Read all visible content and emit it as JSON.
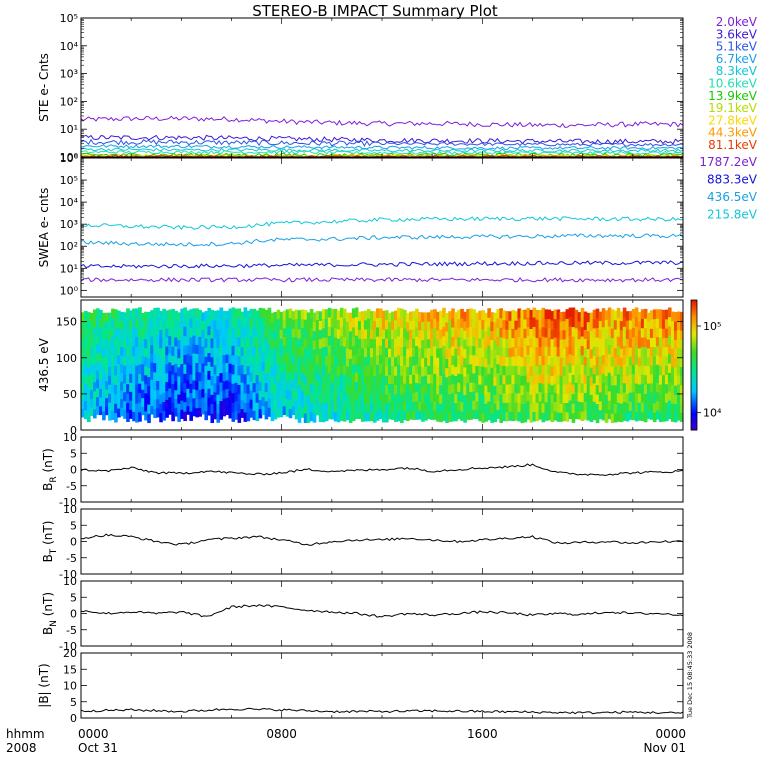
{
  "title": "STEREO-B IMPACT Summary Plot",
  "timestamp": "Tue Dec 15 08:45:33 2008",
  "x_axis": {
    "row1_label": "hhmm",
    "row2_label": "2008",
    "ticks": [
      {
        "t": 0,
        "label": "0000",
        "sub": "Oct 31"
      },
      {
        "t": 8,
        "label": "0800",
        "sub": ""
      },
      {
        "t": 16,
        "label": "1600",
        "sub": ""
      },
      {
        "t": 24,
        "label": "0000",
        "sub": "Nov 01"
      }
    ],
    "range_hours": [
      0,
      24
    ]
  },
  "colors": {
    "violet": "#7f1fd6",
    "purple": "#6a00e0",
    "blue": "#1414d8",
    "royal": "#2a55e8",
    "cyan_blue": "#1aa0e6",
    "cyan": "#10c8d8",
    "teal": "#1fe0b0",
    "green": "#19c800",
    "yellow_green": "#b4dc00",
    "yellow": "#ffd700",
    "orange": "#ff9a00",
    "red_orange": "#e83c00"
  },
  "chart_data": [
    {
      "id": "ste",
      "type": "line",
      "ylabel": "STE e- Cnts",
      "yscale": "log",
      "ylim": [
        1,
        100000
      ],
      "ytick_labels": [
        "10⁰",
        "10¹",
        "10²",
        "10³",
        "10⁴",
        "10⁵"
      ],
      "series": [
        {
          "name": "2.0keV",
          "color": "#7f1fd6",
          "x": [
            0,
            2,
            4,
            6,
            8,
            10,
            12,
            14,
            16,
            18,
            20,
            22,
            24
          ],
          "values": [
            22,
            24,
            24,
            23,
            19,
            17,
            16,
            16,
            15,
            14,
            14,
            15,
            15
          ]
        },
        {
          "name": "3.6keV",
          "color": "#3c1ad6",
          "x": [
            0,
            4,
            8,
            12,
            16,
            20,
            24
          ],
          "values": [
            5,
            5,
            4.5,
            4,
            3.8,
            3.6,
            3.6
          ]
        },
        {
          "name": "5.1keV",
          "color": "#2a55e8",
          "x": [
            0,
            4,
            8,
            12,
            16,
            20,
            24
          ],
          "values": [
            3.5,
            3.4,
            3.2,
            3,
            2.9,
            2.8,
            2.8
          ]
        },
        {
          "name": "6.7keV",
          "color": "#1aa0e6",
          "x": [
            0,
            4,
            8,
            12,
            16,
            20,
            24
          ],
          "values": [
            2.5,
            2.4,
            2.3,
            2.2,
            2.1,
            2.1,
            2.1
          ]
        },
        {
          "name": "8.3keV",
          "color": "#10c8d8",
          "x": [
            0,
            4,
            8,
            12,
            16,
            20,
            24
          ],
          "values": [
            1.9,
            1.8,
            1.8,
            1.7,
            1.7,
            1.7,
            1.7
          ]
        },
        {
          "name": "10.6keV",
          "color": "#1fe0b0",
          "x": [
            0,
            4,
            8,
            12,
            16,
            20,
            24
          ],
          "values": [
            1.5,
            1.5,
            1.5,
            1.4,
            1.4,
            1.4,
            1.4
          ]
        },
        {
          "name": "13.9keV",
          "color": "#19c800",
          "x": [
            0,
            24
          ],
          "values": [
            1.2,
            1.2
          ]
        },
        {
          "name": "19.1keV",
          "color": "#b4dc00",
          "x": [
            0,
            24
          ],
          "values": [
            1.1,
            1.1
          ]
        },
        {
          "name": "27.8keV",
          "color": "#ffd700",
          "x": [
            0,
            24
          ],
          "values": [
            1.05,
            1.05
          ]
        },
        {
          "name": "44.3keV",
          "color": "#ff9a00",
          "x": [
            0,
            24
          ],
          "values": [
            1.02,
            1.02
          ]
        },
        {
          "name": "81.1keV",
          "color": "#e83c00",
          "x": [
            0,
            24
          ],
          "values": [
            1.01,
            1.01
          ]
        }
      ]
    },
    {
      "id": "swea",
      "type": "line",
      "ylabel": "SWEA e- cnts",
      "yscale": "log",
      "ylim": [
        0.5,
        1000000
      ],
      "ytick_labels": [
        "10⁰",
        "10¹",
        "10²",
        "10³",
        "10⁴",
        "10⁵",
        "10⁶"
      ],
      "series": [
        {
          "name": "1787.2eV",
          "color": "#7f1fd6",
          "x": [
            0,
            24
          ],
          "values": [
            3,
            3
          ]
        },
        {
          "name": "883.3eV",
          "color": "#1414d8",
          "x": [
            0,
            6,
            12,
            18,
            24
          ],
          "values": [
            12,
            13,
            15,
            17,
            18
          ]
        },
        {
          "name": "436.5eV",
          "color": "#1aa0e6",
          "x": [
            0,
            2,
            4,
            6,
            7,
            8,
            10,
            12,
            14,
            16,
            18,
            20,
            22,
            24
          ],
          "values": [
            150,
            130,
            120,
            130,
            170,
            200,
            210,
            250,
            260,
            270,
            280,
            300,
            300,
            290
          ]
        },
        {
          "name": "215.8eV",
          "color": "#10c8d8",
          "x": [
            0,
            2,
            4,
            6,
            7,
            8,
            10,
            12,
            14,
            16,
            18,
            20,
            22,
            24
          ],
          "values": [
            900,
            800,
            700,
            750,
            900,
            1100,
            1300,
            1600,
            1700,
            1750,
            1800,
            1750,
            1700,
            1650
          ]
        }
      ]
    },
    {
      "id": "pad",
      "type": "heatmap",
      "ylabel": "436.5 eV",
      "ylim": [
        0,
        180
      ],
      "yticks": [
        0,
        50,
        100,
        150
      ],
      "colorbar": {
        "ticks": [
          "10⁴",
          "10⁵"
        ],
        "log_range": [
          3.8,
          5.3
        ]
      },
      "x_hours": [
        0,
        2,
        4,
        6,
        8,
        10,
        12,
        14,
        16,
        18,
        19.5,
        20,
        21,
        22,
        24
      ],
      "log_flux_profile_bottom": [
        4.3,
        4.1,
        4.0,
        4.0,
        4.3,
        4.4,
        4.5,
        4.6,
        4.6,
        4.7,
        4.7,
        4.7,
        4.7,
        4.6,
        4.6
      ],
      "log_flux_profile_top": [
        4.6,
        4.5,
        4.4,
        4.4,
        4.7,
        4.8,
        4.95,
        5.0,
        5.05,
        5.15,
        5.2,
        5.2,
        5.05,
        5.15,
        5.1
      ]
    },
    {
      "id": "br",
      "type": "line",
      "ylabel": "B_R (nT)",
      "ylim": [
        -10,
        10
      ],
      "yticks": [
        -10,
        -5,
        0,
        5,
        10
      ],
      "series": [
        {
          "name": "",
          "color": "#000000",
          "x": [
            0,
            1,
            2,
            3,
            4,
            5,
            6,
            7,
            8,
            9,
            10,
            11,
            12,
            13,
            14,
            15,
            16,
            17,
            18,
            19,
            20,
            21,
            22,
            23,
            24
          ],
          "values": [
            0,
            -0.5,
            0.5,
            -1,
            -1.2,
            -0.5,
            -1,
            -1.5,
            -1,
            0,
            -0.5,
            -0.3,
            0,
            0.5,
            -0.5,
            0,
            0.5,
            0.8,
            1.5,
            -1,
            -1.5,
            -1.5,
            -1,
            -0.8,
            -0.5
          ]
        }
      ]
    },
    {
      "id": "bt",
      "type": "line",
      "ylabel": "B_T (nT)",
      "ylim": [
        -10,
        10
      ],
      "yticks": [
        -10,
        -5,
        0,
        5,
        10
      ],
      "series": [
        {
          "name": "",
          "color": "#000000",
          "x": [
            0,
            1,
            2,
            3,
            4,
            5,
            6,
            7,
            8,
            9,
            10,
            11,
            12,
            13,
            14,
            15,
            16,
            17,
            18,
            19,
            20,
            21,
            22,
            23,
            24
          ],
          "values": [
            1,
            2,
            1.5,
            0,
            -1,
            0.5,
            1,
            1.5,
            0.5,
            -1,
            0,
            0.5,
            0.5,
            1,
            0.5,
            0,
            0.5,
            1,
            1.5,
            -0.5,
            -0.3,
            0,
            -0.5,
            0,
            0
          ]
        }
      ]
    },
    {
      "id": "bn",
      "type": "line",
      "ylabel": "B_N (nT)",
      "ylim": [
        -10,
        10
      ],
      "yticks": [
        -10,
        -5,
        0,
        5,
        10
      ],
      "series": [
        {
          "name": "",
          "color": "#000000",
          "x": [
            0,
            1,
            2,
            3,
            4,
            5,
            6,
            7,
            8,
            9,
            10,
            11,
            12,
            13,
            14,
            15,
            16,
            17,
            18,
            19,
            20,
            21,
            22,
            23,
            24
          ],
          "values": [
            1,
            0,
            0.5,
            0,
            0.5,
            -1,
            2,
            2.5,
            2,
            1,
            0.5,
            0,
            -1,
            0,
            -0.5,
            0,
            0.5,
            0.2,
            -0.5,
            0,
            -0.3,
            0.5,
            0,
            0,
            -0.5
          ]
        }
      ]
    },
    {
      "id": "bmag",
      "type": "line",
      "ylabel": "|B| (nT)",
      "ylim": [
        0,
        20
      ],
      "yticks": [
        0,
        5,
        10,
        15,
        20
      ],
      "series": [
        {
          "name": "",
          "color": "#000000",
          "x": [
            0,
            2,
            4,
            6,
            8,
            10,
            12,
            14,
            16,
            18,
            20,
            22,
            24
          ],
          "values": [
            2.2,
            2.5,
            2,
            2.8,
            2.5,
            2,
            2,
            2.2,
            2,
            1.8,
            1.6,
            1.8,
            1.5
          ]
        }
      ]
    }
  ]
}
